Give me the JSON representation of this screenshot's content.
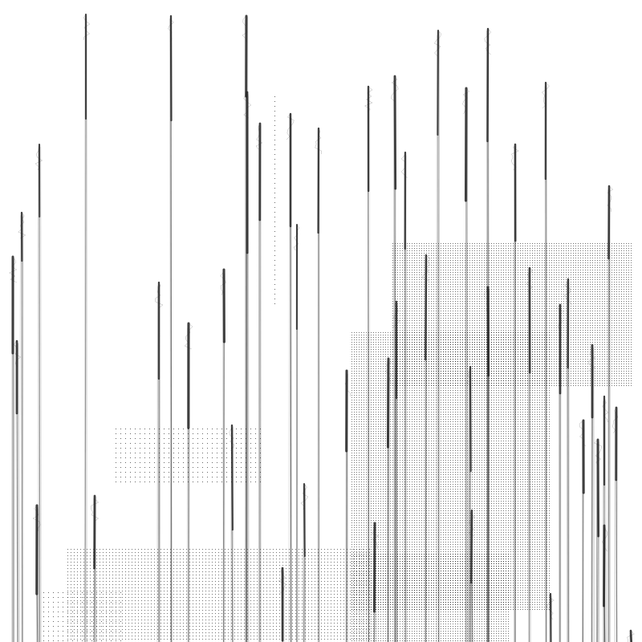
{
  "artwork": {
    "kind": "generative-line-art",
    "palette": {
      "background": "#ffffff",
      "ink": "#222222",
      "dots": "#000000"
    }
  }
}
